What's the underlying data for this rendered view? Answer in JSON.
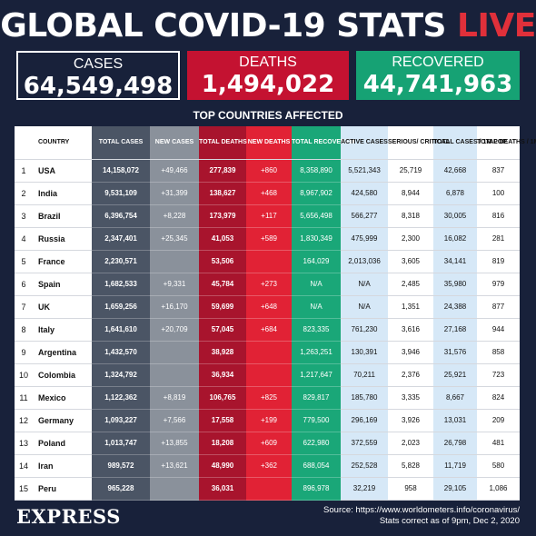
{
  "header": {
    "title": "GLOBAL COVID-19 STATS",
    "live": "LIVE"
  },
  "totals": {
    "cases": {
      "label": "CASES",
      "value": "64,549,498"
    },
    "deaths": {
      "label": "DEATHS",
      "value": "1,494,022"
    },
    "recovered": {
      "label": "RECOVERED",
      "value": "44,741,963"
    }
  },
  "table": {
    "title": "TOP COUNTRIES AFFECTED",
    "columns": [
      "COUNTRY",
      "TOTAL CASES",
      "NEW CASES",
      "TOTAL DEATHS",
      "NEW DEATHS",
      "TOTAL RECOVERED",
      "ACTIVE CASES",
      "SERIOUS/ CRITICAL",
      "TOTAL CASES / 1M POP.",
      "TOTAL DEATHS / 1M POP."
    ],
    "rows": [
      [
        "1",
        "USA",
        "14,158,072",
        "+49,466",
        "277,839",
        "+860",
        "8,358,890",
        "5,521,343",
        "25,719",
        "42,668",
        "837"
      ],
      [
        "2",
        "India",
        "9,531,109",
        "+31,399",
        "138,627",
        "+468",
        "8,967,902",
        "424,580",
        "8,944",
        "6,878",
        "100"
      ],
      [
        "3",
        "Brazil",
        "6,396,754",
        "+8,228",
        "173,979",
        "+117",
        "5,656,498",
        "566,277",
        "8,318",
        "30,005",
        "816"
      ],
      [
        "4",
        "Russia",
        "2,347,401",
        "+25,345",
        "41,053",
        "+589",
        "1,830,349",
        "475,999",
        "2,300",
        "16,082",
        "281"
      ],
      [
        "5",
        "France",
        "2,230,571",
        "",
        "53,506",
        "",
        "164,029",
        "2,013,036",
        "3,605",
        "34,141",
        "819"
      ],
      [
        "6",
        "Spain",
        "1,682,533",
        "+9,331",
        "45,784",
        "+273",
        "N/A",
        "N/A",
        "2,485",
        "35,980",
        "979"
      ],
      [
        "7",
        "UK",
        "1,659,256",
        "+16,170",
        "59,699",
        "+648",
        "N/A",
        "N/A",
        "1,351",
        "24,388",
        "877"
      ],
      [
        "8",
        "Italy",
        "1,641,610",
        "+20,709",
        "57,045",
        "+684",
        "823,335",
        "761,230",
        "3,616",
        "27,168",
        "944"
      ],
      [
        "9",
        "Argentina",
        "1,432,570",
        "",
        "38,928",
        "",
        "1,263,251",
        "130,391",
        "3,946",
        "31,576",
        "858"
      ],
      [
        "10",
        "Colombia",
        "1,324,792",
        "",
        "36,934",
        "",
        "1,217,647",
        "70,211",
        "2,376",
        "25,921",
        "723"
      ],
      [
        "11",
        "Mexico",
        "1,122,362",
        "+8,819",
        "106,765",
        "+825",
        "829,817",
        "185,780",
        "3,335",
        "8,667",
        "824"
      ],
      [
        "12",
        "Germany",
        "1,093,227",
        "+7,566",
        "17,558",
        "+199",
        "779,500",
        "296,169",
        "3,926",
        "13,031",
        "209"
      ],
      [
        "13",
        "Poland",
        "1,013,747",
        "+13,855",
        "18,208",
        "+609",
        "622,980",
        "372,559",
        "2,023",
        "26,798",
        "481"
      ],
      [
        "14",
        "Iran",
        "989,572",
        "+13,621",
        "48,990",
        "+362",
        "688,054",
        "252,528",
        "5,828",
        "11,719",
        "580"
      ],
      [
        "15",
        "Peru",
        "965,228",
        "",
        "36,031",
        "",
        "896,978",
        "32,219",
        "958",
        "29,105",
        "1,086"
      ]
    ]
  },
  "footer": {
    "logo": "EXPRESS",
    "source": "Source: https://www.worldometers.info/coronavirus/",
    "note": "Stats correct as of 9pm, Dec 2, 2020"
  },
  "colors": {
    "background": "#18213a",
    "cases": "#4b5565",
    "new_cases": "#8a919b",
    "deaths": "#a8142d",
    "new_deaths": "#e12235",
    "recovered": "#1aa778",
    "live": "#e0303a"
  }
}
